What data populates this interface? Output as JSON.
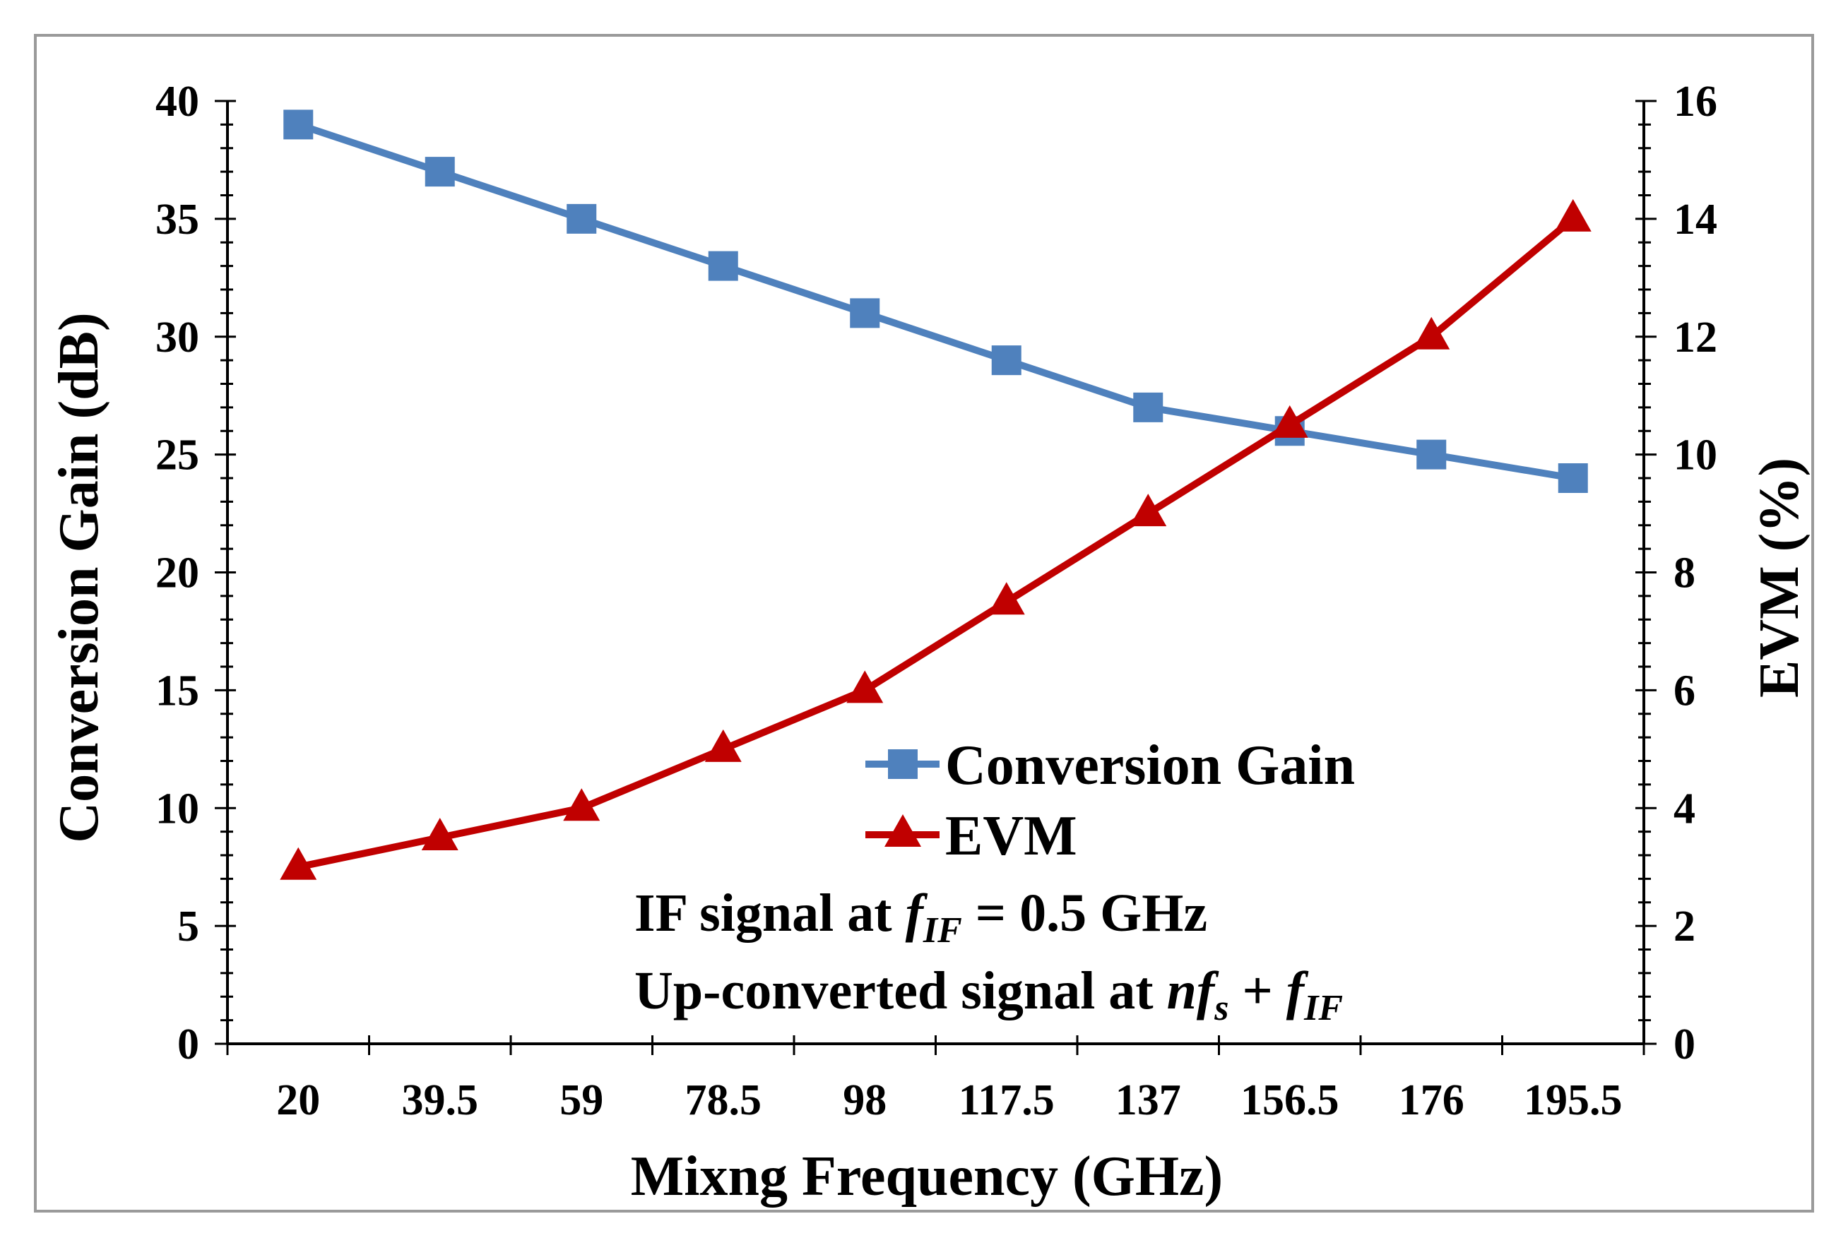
{
  "chart_data": {
    "type": "line",
    "categories": [
      "20",
      "39.5",
      "59",
      "78.5",
      "98",
      "117.5",
      "137",
      "156.5",
      "176",
      "195.5"
    ],
    "xlabel": "Mixng Frequency (GHz)",
    "ylabel": "Conversion Gain (dB)",
    "y2label": "EVM (%)",
    "ylim": [
      0,
      40
    ],
    "y2lim": [
      0,
      16
    ],
    "yticks": [
      "0",
      "5",
      "10",
      "15",
      "20",
      "25",
      "30",
      "35",
      "40"
    ],
    "y2ticks": [
      "0",
      "2",
      "4",
      "6",
      "8",
      "10",
      "12",
      "14",
      "16"
    ],
    "series": [
      {
        "name": "Conversion Gain",
        "axis": "left",
        "marker": "square",
        "color": "#4f81bd",
        "values": [
          39,
          37,
          35,
          33,
          31,
          29,
          27,
          26,
          25,
          24
        ]
      },
      {
        "name": "EVM",
        "axis": "right",
        "marker": "triangle",
        "color": "#c00000",
        "values": [
          3,
          3.5,
          4,
          5,
          6,
          7.5,
          9,
          10.5,
          12,
          14
        ]
      }
    ],
    "legend": {
      "position": "center-right",
      "entries": [
        "Conversion Gain",
        "EVM"
      ]
    },
    "annotations": {
      "line1_prefix": "IF signal at ",
      "line1_f": "f",
      "line1_sub": "IF",
      "line1_suffix": " = 0.5 GHz",
      "line2_prefix": "Up-converted signal at ",
      "line2_n": "n",
      "line2_f1": "f",
      "line2_sub1": "s",
      "line2_plus": " + ",
      "line2_f2": "f",
      "line2_sub2": "IF"
    }
  }
}
